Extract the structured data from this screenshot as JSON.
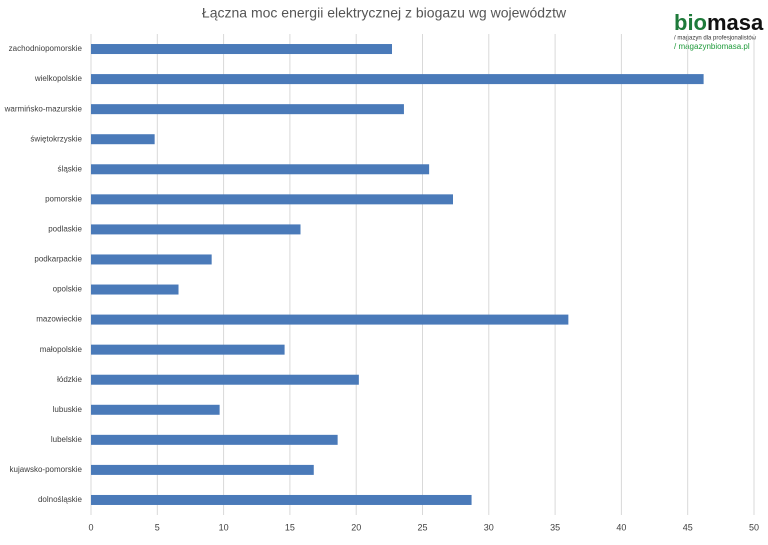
{
  "chart_data": {
    "type": "bar",
    "orientation": "horizontal",
    "title": "Łączna moc energii elektrycznej z biogazu wg województw",
    "categories": [
      "zachodniopomorskie",
      "wielkopolskie",
      "warmińsko-mazurskie",
      "świętokrzyskie",
      "śląskie",
      "pomorskie",
      "podlaskie",
      "podkarpackie",
      "opolskie",
      "mazowieckie",
      "małopolskie",
      "łódzkie",
      "lubuskie",
      "lubelskie",
      "kujawsko-pomorskie",
      "dolnośląskie"
    ],
    "values": [
      22.7,
      46.2,
      23.6,
      4.8,
      25.5,
      27.3,
      15.8,
      9.1,
      6.6,
      36.0,
      14.6,
      20.2,
      9.7,
      18.6,
      16.8,
      28.7
    ],
    "color": "#4a7ab9",
    "xlim": [
      0,
      50
    ],
    "xticks": [
      0,
      5,
      10,
      15,
      20,
      25,
      30,
      35,
      40,
      45,
      50
    ],
    "grid": true
  },
  "logo": {
    "part_1": "bio",
    "part_2": "masa",
    "tagline": "/ magazyn dla profesjonalistów",
    "url": "/ magazynbiomasa.pl"
  }
}
